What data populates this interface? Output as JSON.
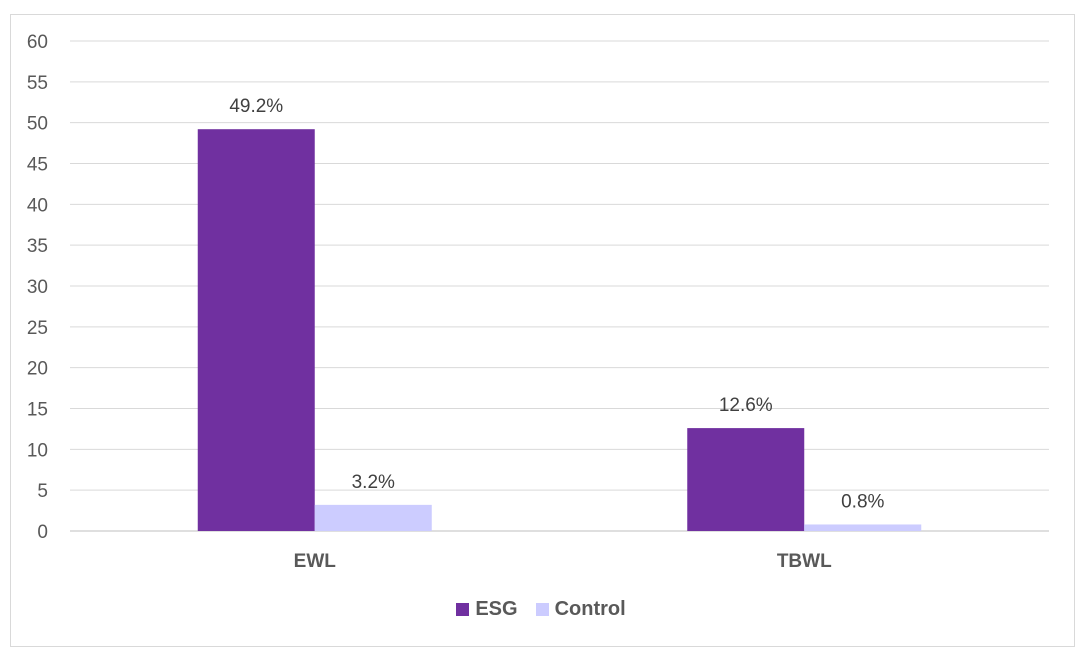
{
  "chart_data": {
    "type": "bar",
    "title": "",
    "xlabel": "",
    "ylabel": "",
    "categories": [
      "EWL",
      "TBWL"
    ],
    "series": [
      {
        "name": "ESG",
        "values": [
          49.2,
          12.6
        ],
        "labels": [
          "49.2%",
          "12.6%"
        ],
        "color": "#7030A0"
      },
      {
        "name": "Control",
        "values": [
          3.2,
          0.8
        ],
        "labels": [
          "3.2%",
          "0.8%"
        ],
        "color": "#CCCCFF"
      }
    ],
    "ylim": [
      0,
      60
    ],
    "yticks": [
      0,
      5,
      10,
      15,
      20,
      25,
      30,
      35,
      40,
      45,
      50,
      55,
      60
    ],
    "grid": true,
    "legend": "bottom"
  }
}
